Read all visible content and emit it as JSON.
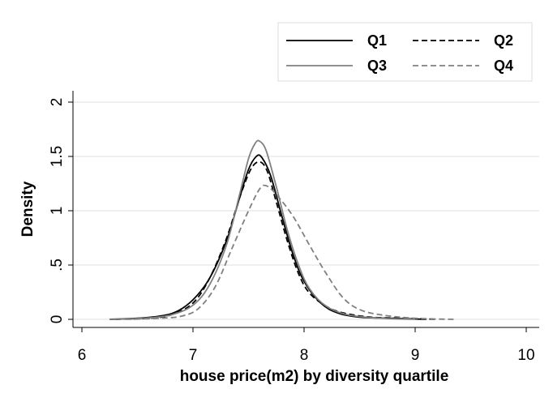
{
  "chart_data": {
    "type": "line",
    "title": "",
    "xlabel": "house price(m2) by diversity quartile",
    "ylabel": "Density",
    "xlim": [
      6,
      10
    ],
    "ylim": [
      0,
      2
    ],
    "x_ticks": [
      6,
      7,
      8,
      9,
      10
    ],
    "x_tick_labels": [
      "6",
      "7",
      "8",
      "9",
      "10"
    ],
    "y_ticks": [
      0,
      0.5,
      1,
      1.5,
      2
    ],
    "y_tick_labels": [
      "0",
      ".5",
      "1",
      "1.5",
      "2"
    ],
    "grid": "horizontal",
    "legend": {
      "position": "top-right",
      "entries": [
        "Q1",
        "Q2",
        "Q3",
        "Q4"
      ]
    },
    "series": [
      {
        "name": "Q1",
        "color": "#000000",
        "dash": "solid",
        "points": [
          [
            6.25,
            0.0
          ],
          [
            6.5,
            0.01
          ],
          [
            6.7,
            0.03
          ],
          [
            6.85,
            0.07
          ],
          [
            7.0,
            0.18
          ],
          [
            7.15,
            0.38
          ],
          [
            7.3,
            0.72
          ],
          [
            7.42,
            1.12
          ],
          [
            7.5,
            1.38
          ],
          [
            7.57,
            1.5
          ],
          [
            7.62,
            1.49
          ],
          [
            7.7,
            1.32
          ],
          [
            7.8,
            0.95
          ],
          [
            7.9,
            0.6
          ],
          [
            8.0,
            0.35
          ],
          [
            8.15,
            0.15
          ],
          [
            8.3,
            0.06
          ],
          [
            8.5,
            0.02
          ],
          [
            8.8,
            0.01
          ],
          [
            9.1,
            0.0
          ]
        ]
      },
      {
        "name": "Q2",
        "color": "#000000",
        "dash": "dashed",
        "points": [
          [
            6.3,
            0.0
          ],
          [
            6.6,
            0.01
          ],
          [
            6.8,
            0.04
          ],
          [
            7.0,
            0.15
          ],
          [
            7.15,
            0.38
          ],
          [
            7.3,
            0.74
          ],
          [
            7.42,
            1.12
          ],
          [
            7.52,
            1.38
          ],
          [
            7.6,
            1.45
          ],
          [
            7.67,
            1.36
          ],
          [
            7.75,
            1.08
          ],
          [
            7.85,
            0.72
          ],
          [
            7.95,
            0.42
          ],
          [
            8.05,
            0.24
          ],
          [
            8.2,
            0.12
          ],
          [
            8.35,
            0.06
          ],
          [
            8.6,
            0.02
          ],
          [
            8.9,
            0.01
          ],
          [
            9.2,
            0.0
          ]
        ]
      },
      {
        "name": "Q3",
        "color": "#808080",
        "dash": "solid",
        "points": [
          [
            6.25,
            0.0
          ],
          [
            6.55,
            0.01
          ],
          [
            6.8,
            0.04
          ],
          [
            7.0,
            0.13
          ],
          [
            7.15,
            0.32
          ],
          [
            7.3,
            0.68
          ],
          [
            7.42,
            1.15
          ],
          [
            7.5,
            1.48
          ],
          [
            7.56,
            1.62
          ],
          [
            7.6,
            1.64
          ],
          [
            7.66,
            1.55
          ],
          [
            7.75,
            1.22
          ],
          [
            7.85,
            0.82
          ],
          [
            7.95,
            0.5
          ],
          [
            8.05,
            0.28
          ],
          [
            8.2,
            0.12
          ],
          [
            8.4,
            0.04
          ],
          [
            8.7,
            0.01
          ],
          [
            9.0,
            0.0
          ]
        ]
      },
      {
        "name": "Q4",
        "color": "#808080",
        "dash": "dashed",
        "points": [
          [
            6.4,
            0.0
          ],
          [
            6.7,
            0.01
          ],
          [
            6.9,
            0.03
          ],
          [
            7.05,
            0.1
          ],
          [
            7.2,
            0.3
          ],
          [
            7.35,
            0.65
          ],
          [
            7.5,
            1.0
          ],
          [
            7.6,
            1.2
          ],
          [
            7.66,
            1.23
          ],
          [
            7.75,
            1.15
          ],
          [
            7.9,
            0.95
          ],
          [
            8.05,
            0.68
          ],
          [
            8.2,
            0.42
          ],
          [
            8.35,
            0.2
          ],
          [
            8.5,
            0.09
          ],
          [
            8.7,
            0.04
          ],
          [
            9.0,
            0.01
          ],
          [
            9.35,
            0.0
          ]
        ]
      }
    ]
  }
}
